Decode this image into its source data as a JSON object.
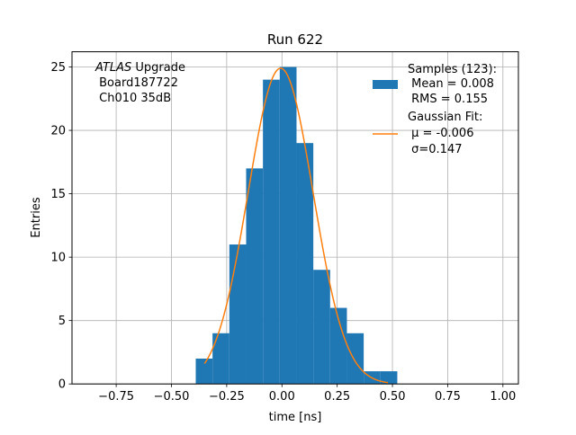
{
  "chart_data": {
    "type": "bar",
    "title": "Run 622",
    "xlabel": "time [ns]",
    "ylabel": "Entries",
    "xlim": [
      -0.95,
      1.07
    ],
    "ylim": [
      0,
      26.2
    ],
    "grid": true,
    "xticks": [
      -0.75,
      -0.5,
      -0.25,
      0.0,
      0.25,
      0.5,
      0.75,
      1.0
    ],
    "xtick_labels": [
      "−0.75",
      "−0.50",
      "−0.25",
      "0.00",
      "0.25",
      "0.50",
      "0.75",
      "1.00"
    ],
    "yticks": [
      0,
      5,
      10,
      15,
      20,
      25
    ],
    "ytick_labels": [
      "0",
      "5",
      "10",
      "15",
      "20",
      "25"
    ],
    "bin_edges": [
      -0.39,
      -0.314,
      -0.238,
      -0.162,
      -0.086,
      -0.01,
      0.066,
      0.142,
      0.218,
      0.294,
      0.37,
      0.446,
      0.522
    ],
    "series": [
      {
        "kind": "histogram",
        "name": "Samples (123):",
        "color": "#1f77b4",
        "values": [
          2,
          4,
          11,
          17,
          24,
          25,
          19,
          9,
          6,
          4,
          1,
          1
        ]
      },
      {
        "kind": "gaussian-fit",
        "name": "Gaussian Fit:",
        "color": "#ff7f0e",
        "amplitude": 24.9,
        "mu": -0.006,
        "sigma": 0.147,
        "x_range": [
          -0.35,
          0.48
        ]
      }
    ],
    "annotations": {
      "experiment_italic": "ATLAS",
      "experiment_rest": " Upgrade",
      "board": " Board187722",
      "channel": " Ch010 35dB"
    },
    "legend": {
      "placement": "top-right",
      "samples_title": "Samples (123):",
      "samples_mean": " Mean = 0.008",
      "samples_rms": " RMS = 0.155",
      "fit_title": "Gaussian Fit:",
      "fit_mu": " μ = -0.006",
      "fit_sigma": " σ=0.147"
    }
  }
}
